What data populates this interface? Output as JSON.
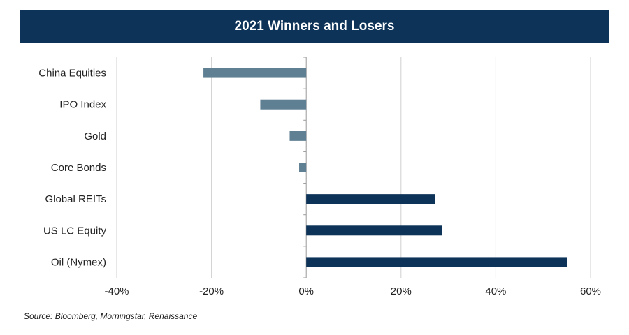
{
  "header": {
    "title": "2021 Winners and Losers"
  },
  "footer": {
    "source": "Source: Bloomberg, Morningstar, Renaissance"
  },
  "chart_data": {
    "type": "bar",
    "orientation": "horizontal",
    "title": "2021 Winners and Losers",
    "categories": [
      "China Equities",
      "IPO Index",
      "Gold",
      "Core Bonds",
      "Global REITs",
      "US LC Equity",
      "Oil (Nymex)"
    ],
    "values": [
      -21.7,
      -9.7,
      -3.5,
      -1.5,
      27.2,
      28.7,
      55.0
    ],
    "xlim": [
      -40,
      60
    ],
    "xticks": [
      -40,
      -20,
      0,
      20,
      40,
      60
    ],
    "xtick_labels": [
      "-40%",
      "-20%",
      "0%",
      "20%",
      "40%",
      "60%"
    ],
    "grid": "vertical",
    "legend": "none",
    "colors": {
      "negative": "#5f7f92",
      "positive": "#0d3358",
      "grid": "#cfcfcf",
      "axis": "#999999"
    }
  }
}
